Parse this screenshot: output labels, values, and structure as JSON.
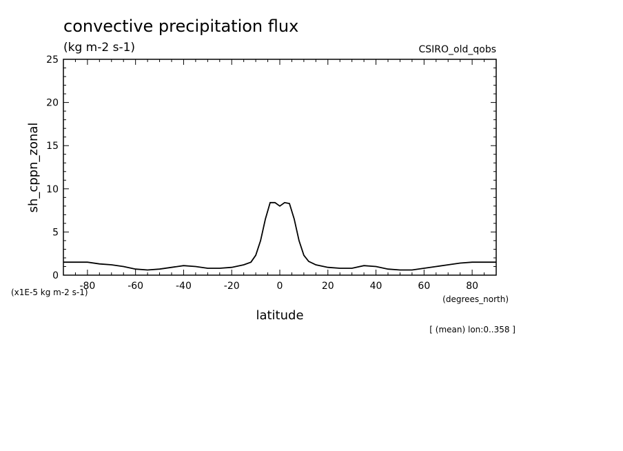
{
  "chart_data": {
    "type": "line",
    "title": "convective precipitation flux",
    "units": "(kg m-2 s-1)",
    "dataset": "CSIRO_old_qobs",
    "ylabel": "sh_cppn_zonal",
    "xlabel": "latitude",
    "xunits": "(degrees_north)",
    "yscale_note": "(x1E-5 kg m-2 s-1)",
    "footer": "[ (mean) lon:0..358 ]",
    "xlim": [
      -90,
      90
    ],
    "ylim": [
      0,
      25
    ],
    "xticks": [
      "-80",
      "-60",
      "-40",
      "-20",
      "0",
      "20",
      "40",
      "60",
      "80"
    ],
    "yticks": [
      "0",
      "5",
      "10",
      "15",
      "20",
      "25"
    ],
    "series": [
      {
        "x": [
          -90,
          -85,
          -80,
          -75,
          -70,
          -65,
          -60,
          -55,
          -50,
          -45,
          -40,
          -35,
          -30,
          -25,
          -20,
          -15,
          -12,
          -10,
          -8,
          -6,
          -4,
          -2,
          0,
          2,
          4,
          6,
          8,
          10,
          12,
          15,
          20,
          25,
          30,
          35,
          40,
          45,
          50,
          55,
          60,
          65,
          70,
          75,
          80,
          85,
          90
        ],
        "y": [
          1.5,
          1.5,
          1.5,
          1.3,
          1.2,
          1.0,
          0.7,
          0.6,
          0.7,
          0.9,
          1.1,
          1.0,
          0.8,
          0.8,
          0.9,
          1.2,
          1.5,
          2.3,
          4.0,
          6.5,
          8.4,
          8.4,
          8.0,
          8.4,
          8.3,
          6.5,
          4.0,
          2.3,
          1.6,
          1.2,
          0.9,
          0.8,
          0.8,
          1.1,
          1.0,
          0.7,
          0.6,
          0.6,
          0.8,
          1.0,
          1.2,
          1.4,
          1.5,
          1.5,
          1.5
        ]
      }
    ]
  }
}
